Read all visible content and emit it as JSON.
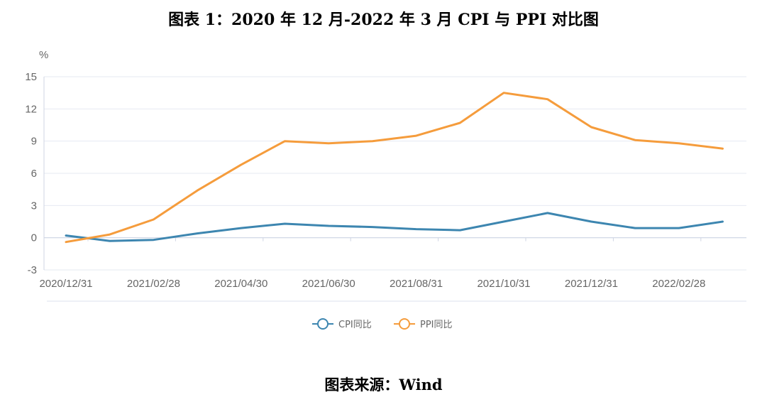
{
  "title": "图表 1：2020 年 12 月-2022 年 3 月 CPI 与 PPI 对比图",
  "source": "图表来源：Wind",
  "chart_data": {
    "type": "line",
    "y_unit": "%",
    "ylim": [
      -3,
      15
    ],
    "y_ticks": [
      "15",
      "12",
      "9",
      "6",
      "3",
      "0",
      "-3"
    ],
    "x_tick_labels": [
      "2020/12/31",
      "2021/02/28",
      "2021/04/30",
      "2021/06/30",
      "2021/08/31",
      "2021/10/31",
      "2021/12/31",
      "2022/02/28"
    ],
    "x": [
      "2020/12/31",
      "2021/01/31",
      "2021/02/28",
      "2021/03/31",
      "2021/04/30",
      "2021/05/31",
      "2021/06/30",
      "2021/07/31",
      "2021/08/31",
      "2021/09/30",
      "2021/10/31",
      "2021/11/30",
      "2021/12/31",
      "2022/01/31",
      "2022/02/28",
      "2022/03/31"
    ],
    "series": [
      {
        "name": "CPI同比",
        "color": "#3d86b0",
        "values": [
          0.2,
          -0.3,
          -0.2,
          0.4,
          0.9,
          1.3,
          1.1,
          1.0,
          0.8,
          0.7,
          1.5,
          2.3,
          1.5,
          0.9,
          0.9,
          1.5
        ]
      },
      {
        "name": "PPI同比",
        "color": "#f59c3c",
        "values": [
          -0.4,
          0.3,
          1.7,
          4.4,
          6.8,
          9.0,
          8.8,
          9.0,
          9.5,
          10.7,
          13.5,
          12.9,
          10.3,
          9.1,
          8.8,
          8.3
        ]
      }
    ],
    "grid": true,
    "legend_position": "bottom-center"
  }
}
